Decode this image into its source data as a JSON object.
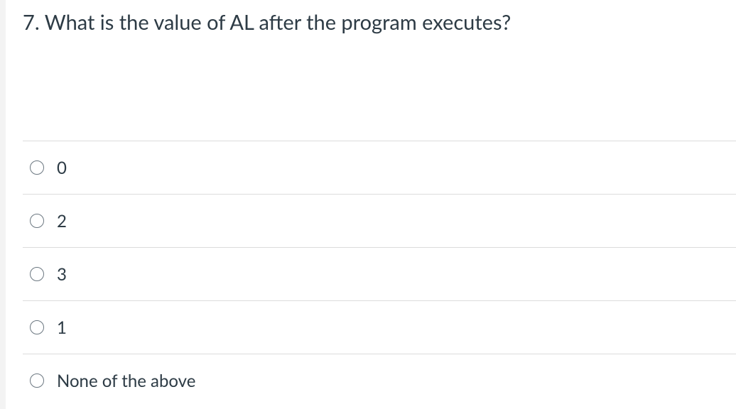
{
  "question": {
    "text": "7. What is the value of AL after the program executes?"
  },
  "options": [
    "0",
    "2",
    "3",
    "1",
    "None of the above"
  ]
}
